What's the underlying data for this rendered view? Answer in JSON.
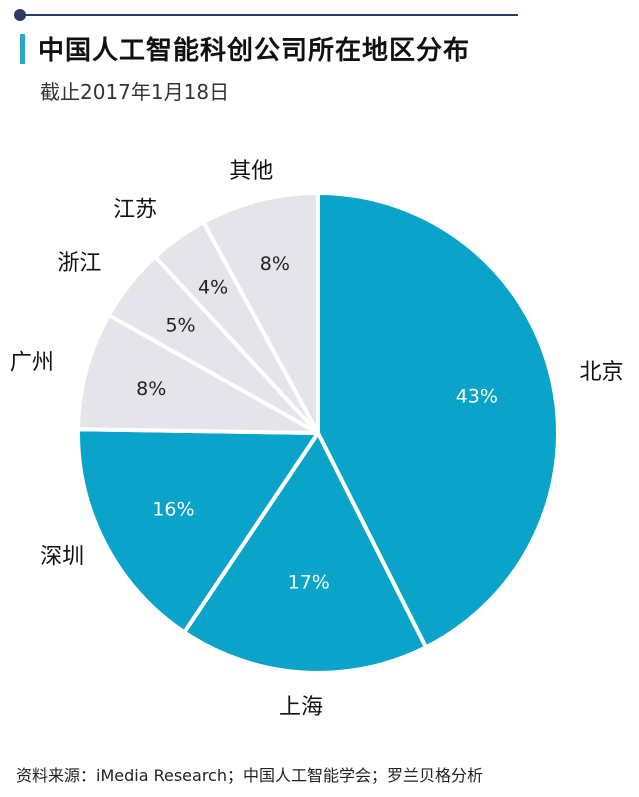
{
  "header": {
    "title": "中国人工智能科创公司所在地区分布",
    "subtitle": "截止2017年1月18日"
  },
  "chart_data": {
    "type": "pie",
    "title": "中国人工智能科创公司所在地区分布",
    "subtitle": "截止2017年1月18日",
    "slices": [
      {
        "label": "北京",
        "value": 43,
        "value_label": "43%",
        "color": "#0aa3c9"
      },
      {
        "label": "上海",
        "value": 17,
        "value_label": "17%",
        "color": "#0aa3c9"
      },
      {
        "label": "深圳",
        "value": 16,
        "value_label": "16%",
        "color": "#0aa3c9"
      },
      {
        "label": "广州",
        "value": 8,
        "value_label": "8%",
        "color": "#e4e4ea"
      },
      {
        "label": "浙江",
        "value": 5,
        "value_label": "5%",
        "color": "#e4e4ea"
      },
      {
        "label": "江苏",
        "value": 4,
        "value_label": "4%",
        "color": "#e4e4ea"
      },
      {
        "label": "其他",
        "value": 8,
        "value_label": "8%",
        "color": "#e4e4ea"
      }
    ],
    "start": "12 o'clock",
    "direction": "clockwise"
  },
  "footer": {
    "source": "资料来源：iMedia Research；中国人工智能学会；罗兰贝格分析"
  },
  "colors": {
    "accent": "#0aa3c9",
    "light": "#e4e4ea",
    "rule": "#2b3a66"
  }
}
